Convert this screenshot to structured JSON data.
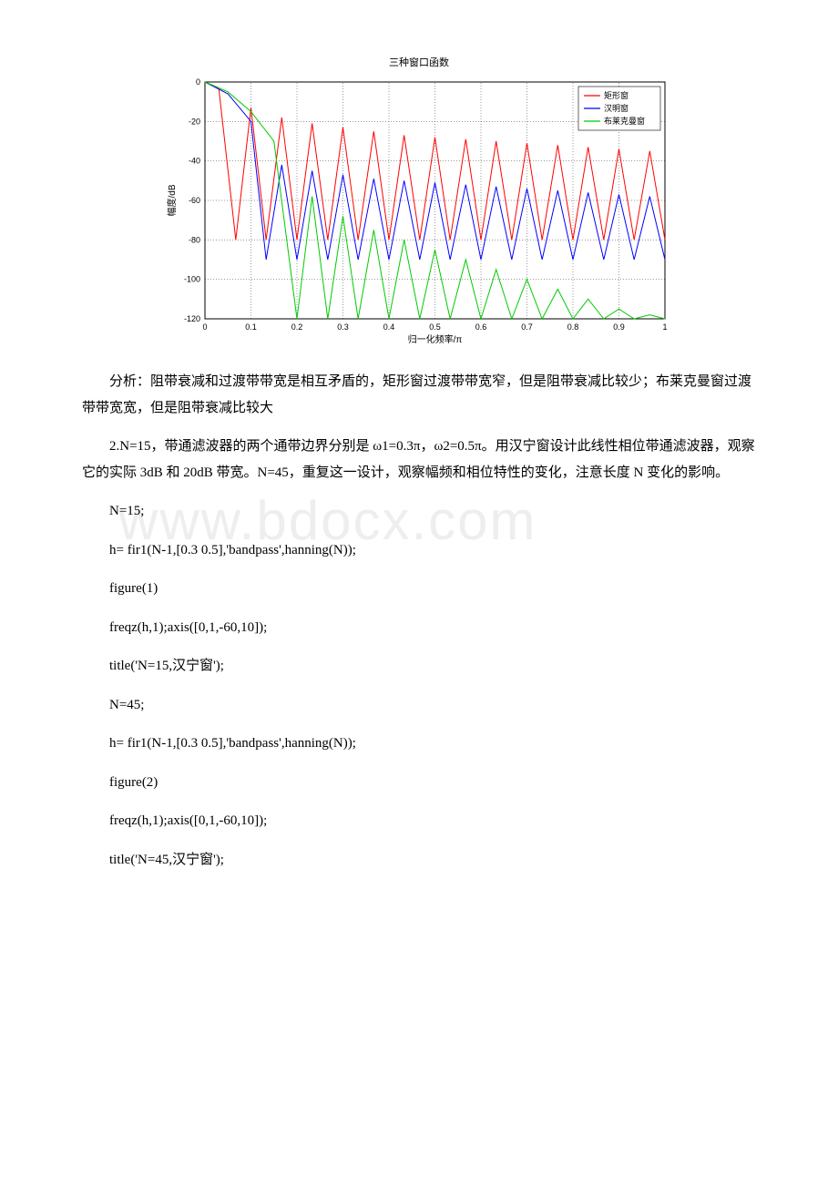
{
  "chart": {
    "type": "line",
    "title": "三种窗口函数",
    "title_fontsize": 11,
    "xlabel": "归一化频率/π",
    "ylabel": "幅度/dB",
    "label_fontsize": 10,
    "xlim": [
      0,
      1
    ],
    "ylim": [
      -120,
      0
    ],
    "xticks": [
      0,
      0.1,
      0.2,
      0.3,
      0.4,
      0.5,
      0.6,
      0.7,
      0.8,
      0.9,
      1
    ],
    "yticks": [
      0,
      -20,
      -40,
      -60,
      -80,
      -100,
      -120
    ],
    "background_color": "#ffffff",
    "grid_color": "#000000",
    "grid_style": "dotted",
    "legend": {
      "position": "top-right",
      "border_color": "#000000",
      "items": [
        {
          "label": "矩形窗",
          "color": "#ff0000"
        },
        {
          "label": "汉明窗",
          "color": "#0000ff"
        },
        {
          "label": "布莱克曼窗",
          "color": "#00cc00"
        }
      ]
    },
    "series": [
      {
        "name": "矩形窗",
        "color": "#ff0000",
        "line_width": 1,
        "lobe_floor_db": -35,
        "x": [
          0,
          0.03,
          0.067,
          0.1,
          0.133,
          0.167,
          0.2,
          0.233,
          0.267,
          0.3,
          0.333,
          0.367,
          0.4,
          0.433,
          0.467,
          0.5,
          0.533,
          0.567,
          0.6,
          0.633,
          0.667,
          0.7,
          0.733,
          0.767,
          0.8,
          0.833,
          0.867,
          0.9,
          0.933,
          0.967,
          1
        ],
        "y": [
          0,
          -3,
          -80,
          -13,
          -80,
          -18,
          -80,
          -21,
          -80,
          -23,
          -80,
          -25,
          -80,
          -27,
          -80,
          -28,
          -80,
          -29,
          -80,
          -30,
          -80,
          -31,
          -80,
          -32,
          -80,
          -33,
          -80,
          -34,
          -80,
          -35,
          -80
        ]
      },
      {
        "name": "汉明窗",
        "color": "#0000ff",
        "line_width": 1,
        "lobe_floor_db": -55,
        "x": [
          0,
          0.05,
          0.1,
          0.133,
          0.167,
          0.2,
          0.233,
          0.267,
          0.3,
          0.333,
          0.367,
          0.4,
          0.433,
          0.467,
          0.5,
          0.533,
          0.567,
          0.6,
          0.633,
          0.667,
          0.7,
          0.733,
          0.767,
          0.8,
          0.833,
          0.867,
          0.9,
          0.933,
          0.967,
          1
        ],
        "y": [
          0,
          -6,
          -20,
          -90,
          -42,
          -90,
          -45,
          -90,
          -47,
          -90,
          -49,
          -90,
          -50,
          -90,
          -51,
          -90,
          -52,
          -90,
          -53,
          -90,
          -54,
          -90,
          -55,
          -90,
          -56,
          -90,
          -57,
          -90,
          -58,
          -90
        ]
      },
      {
        "name": "布莱克曼窗",
        "color": "#00cc00",
        "line_width": 1,
        "lobe_floor_db": -75,
        "x": [
          0,
          0.05,
          0.1,
          0.15,
          0.2,
          0.233,
          0.267,
          0.3,
          0.333,
          0.367,
          0.4,
          0.433,
          0.467,
          0.5,
          0.533,
          0.567,
          0.6,
          0.633,
          0.667,
          0.7,
          0.733,
          0.767,
          0.8,
          0.833,
          0.867,
          0.9,
          0.933,
          0.967,
          1
        ],
        "y": [
          0,
          -5,
          -15,
          -30,
          -120,
          -58,
          -120,
          -68,
          -120,
          -75,
          -120,
          -80,
          -120,
          -85,
          -120,
          -90,
          -120,
          -95,
          -120,
          -100,
          -120,
          -105,
          -120,
          -110,
          -120,
          -115,
          -120,
          -118,
          -120
        ]
      }
    ]
  },
  "para1": "分析：阻带衰减和过渡带带宽是相互矛盾的，矩形窗过渡带带宽窄，但是阻带衰减比较少；布莱克曼窗过渡带带宽宽，但是阻带衰减比较大",
  "para2": "2.N=15，带通滤波器的两个通带边界分别是 ω1=0.3π，ω2=0.5π。用汉宁窗设计此线性相位带通滤波器，观察它的实际 3dB 和 20dB 带宽。N=45，重复这一设计，观察幅频和相位特性的变化，注意长度 N 变化的影响。",
  "code": [
    "N=15;",
    "h= fir1(N-1,[0.3 0.5],'bandpass',hanning(N));",
    "figure(1)",
    "freqz(h,1);axis([0,1,-60,10]);",
    "title('N=15,汉宁窗');",
    "N=45;",
    "h= fir1(N-1,[0.3 0.5],'bandpass',hanning(N));",
    "figure(2)",
    "freqz(h,1);axis([0,1,-60,10]);",
    "title('N=45,汉宁窗');"
  ],
  "watermark": "www.bdocx.com"
}
